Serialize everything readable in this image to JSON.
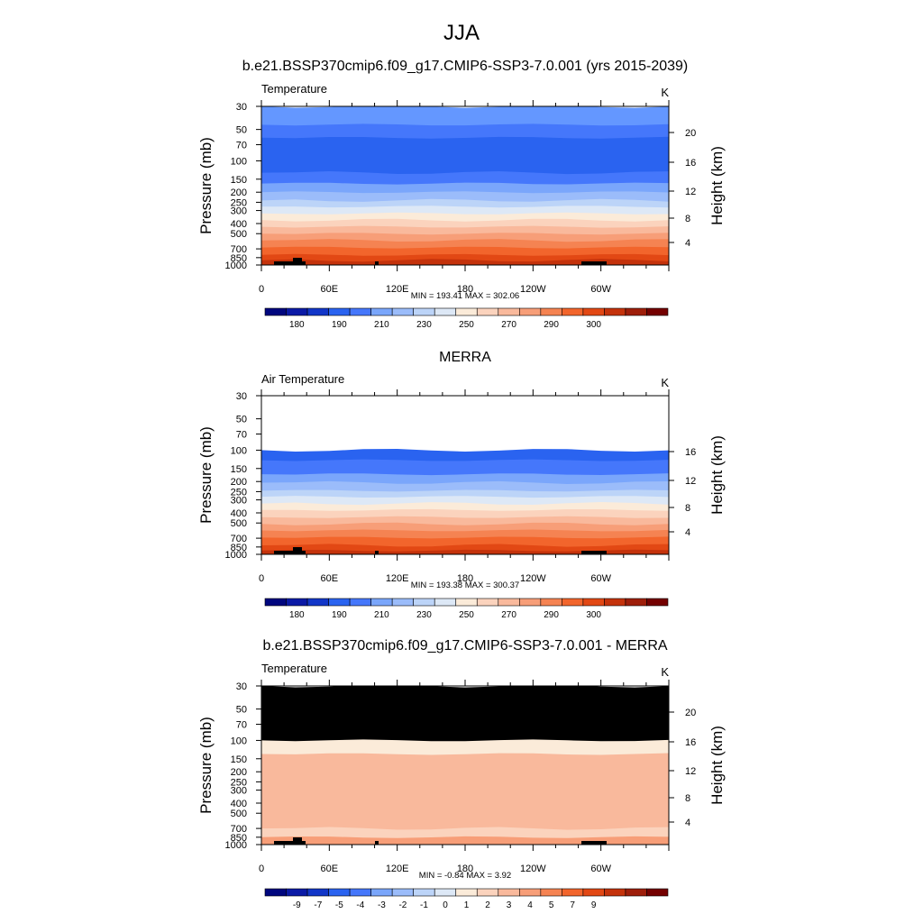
{
  "figure_title": "JJA",
  "chart_data": [
    {
      "type": "heatmap",
      "title": "b.e21.BSSP370cmip6.f09_g17.CMIP6-SSP3-7.0.001 (yrs 2015-2039)",
      "left_string": "Temperature",
      "right_string": "K",
      "ylabel": "Pressure (mb)",
      "ylabel_right": "Height (km)",
      "x_ticks": [
        "0",
        "60E",
        "120E",
        "180",
        "120W",
        "60W"
      ],
      "y_ticks": [
        "30",
        "50",
        "70",
        "100",
        "150",
        "200",
        "250",
        "300",
        "400",
        "500",
        "700",
        "850",
        "1000"
      ],
      "y_right_ticks": [
        "20",
        "16",
        "12",
        "8",
        "4"
      ],
      "top_pressure": 30,
      "fill_levels": [
        {
          "p_top": 30,
          "p_bottom": 45,
          "color": "#6497ff"
        },
        {
          "p_top": 45,
          "p_bottom": 60,
          "color": "#4577fb"
        },
        {
          "p_top": 60,
          "p_bottom": 130,
          "color": "#2a63f0"
        },
        {
          "p_top": 130,
          "p_bottom": 165,
          "color": "#4577fb"
        },
        {
          "p_top": 165,
          "p_bottom": 200,
          "color": "#7aa6fb"
        },
        {
          "p_top": 200,
          "p_bottom": 240,
          "color": "#9bbcfa"
        },
        {
          "p_top": 240,
          "p_bottom": 275,
          "color": "#bcd4f8"
        },
        {
          "p_top": 275,
          "p_bottom": 320,
          "color": "#dde8f6"
        },
        {
          "p_top": 320,
          "p_bottom": 370,
          "color": "#fbebd9"
        },
        {
          "p_top": 370,
          "p_bottom": 430,
          "color": "#fbd3bd"
        },
        {
          "p_top": 430,
          "p_bottom": 500,
          "color": "#f9b99c"
        },
        {
          "p_top": 500,
          "p_bottom": 580,
          "color": "#f79e78"
        },
        {
          "p_top": 580,
          "p_bottom": 680,
          "color": "#f58352"
        },
        {
          "p_top": 680,
          "p_bottom": 800,
          "color": "#f2652c"
        },
        {
          "p_top": 800,
          "p_bottom": 900,
          "color": "#e24814"
        },
        {
          "p_top": 900,
          "p_bottom": 1000,
          "color": "#c4320b"
        }
      ],
      "stats": "MIN = 193.41  MAX = 302.06",
      "colorbar": {
        "colors": [
          "#00067e",
          "#0b1aa6",
          "#1236c8",
          "#2a63f0",
          "#4577fb",
          "#7aa6fb",
          "#9bbcfa",
          "#bcd4f8",
          "#dde8f6",
          "#fbebd9",
          "#fbd3bd",
          "#f9b99c",
          "#f79e78",
          "#f58352",
          "#f2652c",
          "#e24814",
          "#c4320b",
          "#9e1e0a",
          "#740000"
        ],
        "labels": [
          "180",
          "190",
          "210",
          "230",
          "250",
          "270",
          "290",
          "300"
        ],
        "label_boxes": [
          1,
          3,
          5,
          7,
          9,
          11,
          13,
          15
        ]
      }
    },
    {
      "type": "heatmap",
      "title": "MERRA",
      "left_string": "Air Temperature",
      "right_string": "K",
      "ylabel": "Pressure (mb)",
      "ylabel_right": "Height (km)",
      "x_ticks": [
        "0",
        "60E",
        "120E",
        "180",
        "120W",
        "60W"
      ],
      "y_ticks": [
        "30",
        "50",
        "70",
        "100",
        "150",
        "200",
        "250",
        "300",
        "400",
        "500",
        "700",
        "850",
        "1000"
      ],
      "y_right_ticks": [
        "16",
        "12",
        "8",
        "4"
      ],
      "top_pressure": 30,
      "fill_levels": [
        {
          "p_top": 100,
          "p_bottom": 125,
          "color": "#2a63f0"
        },
        {
          "p_top": 125,
          "p_bottom": 170,
          "color": "#4577fb"
        },
        {
          "p_top": 170,
          "p_bottom": 205,
          "color": "#7aa6fb"
        },
        {
          "p_top": 205,
          "p_bottom": 245,
          "color": "#9bbcfa"
        },
        {
          "p_top": 245,
          "p_bottom": 280,
          "color": "#bcd4f8"
        },
        {
          "p_top": 280,
          "p_bottom": 325,
          "color": "#dde8f6"
        },
        {
          "p_top": 325,
          "p_bottom": 375,
          "color": "#fbebd9"
        },
        {
          "p_top": 375,
          "p_bottom": 440,
          "color": "#fbd3bd"
        },
        {
          "p_top": 440,
          "p_bottom": 510,
          "color": "#f9b99c"
        },
        {
          "p_top": 510,
          "p_bottom": 590,
          "color": "#f79e78"
        },
        {
          "p_top": 590,
          "p_bottom": 690,
          "color": "#f58352"
        },
        {
          "p_top": 690,
          "p_bottom": 820,
          "color": "#f2652c"
        },
        {
          "p_top": 820,
          "p_bottom": 920,
          "color": "#e24814"
        },
        {
          "p_top": 920,
          "p_bottom": 1000,
          "color": "#c4320b"
        }
      ],
      "stats": "MIN = 193.38  MAX = 300.37",
      "colorbar": {
        "colors": [
          "#00067e",
          "#0b1aa6",
          "#1236c8",
          "#2a63f0",
          "#4577fb",
          "#7aa6fb",
          "#9bbcfa",
          "#bcd4f8",
          "#dde8f6",
          "#fbebd9",
          "#fbd3bd",
          "#f9b99c",
          "#f79e78",
          "#f58352",
          "#f2652c",
          "#e24814",
          "#c4320b",
          "#9e1e0a",
          "#740000"
        ],
        "labels": [
          "180",
          "190",
          "210",
          "230",
          "250",
          "270",
          "290",
          "300"
        ],
        "label_boxes": [
          1,
          3,
          5,
          7,
          9,
          11,
          13,
          15
        ]
      }
    },
    {
      "type": "heatmap",
      "title": "b.e21.BSSP370cmip6.f09_g17.CMIP6-SSP3-7.0.001 - MERRA",
      "left_string": "Temperature",
      "right_string": "K",
      "ylabel": "Pressure (mb)",
      "ylabel_right": "Height (km)",
      "x_ticks": [
        "0",
        "60E",
        "120E",
        "180",
        "120W",
        "60W"
      ],
      "y_ticks": [
        "30",
        "50",
        "70",
        "100",
        "150",
        "200",
        "250",
        "300",
        "400",
        "500",
        "700",
        "850",
        "1000"
      ],
      "y_right_ticks": [
        "20",
        "16",
        "12",
        "8",
        "4"
      ],
      "top_pressure": 30,
      "fill_levels": [
        {
          "p_top": 30,
          "p_bottom": 100,
          "color": "#000000"
        },
        {
          "p_top": 100,
          "p_bottom": 135,
          "color": "#fbebd9"
        },
        {
          "p_top": 135,
          "p_bottom": 700,
          "color": "#f9b99c"
        },
        {
          "p_top": 700,
          "p_bottom": 850,
          "color": "#fbd3bd"
        },
        {
          "p_top": 850,
          "p_bottom": 1000,
          "color": "#f79e78"
        }
      ],
      "stats": "MIN = -0.84  MAX =  3.92",
      "colorbar": {
        "colors": [
          "#00067e",
          "#0b1aa6",
          "#1236c8",
          "#2a63f0",
          "#4577fb",
          "#7aa6fb",
          "#9bbcfa",
          "#bcd4f8",
          "#dde8f6",
          "#fbebd9",
          "#fbd3bd",
          "#f9b99c",
          "#f79e78",
          "#f58352",
          "#f2652c",
          "#e24814",
          "#c4320b",
          "#9e1e0a",
          "#740000"
        ],
        "labels": [
          "-9",
          "-7",
          "-5",
          "-4",
          "-3",
          "-2",
          "-1",
          "0",
          "1",
          "2",
          "3",
          "4",
          "5",
          "7",
          "9"
        ],
        "label_boxes": [
          1,
          2,
          3,
          4,
          5,
          6,
          7,
          8,
          9,
          10,
          11,
          12,
          13,
          14,
          15
        ]
      }
    }
  ]
}
